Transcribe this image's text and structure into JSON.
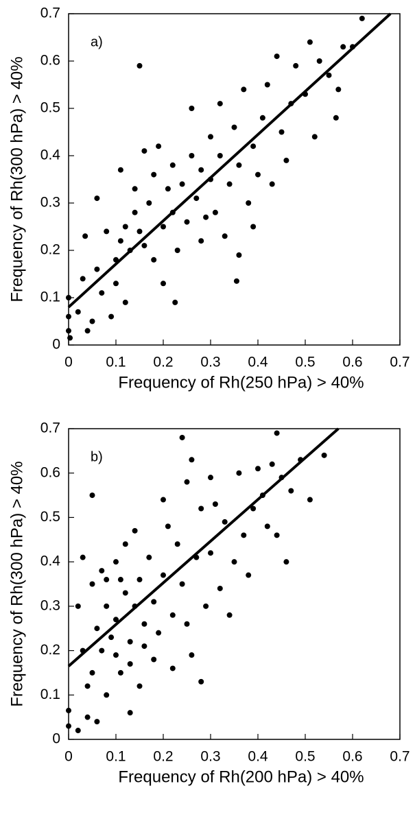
{
  "chart_data": [
    {
      "type": "scatter",
      "annotation": "a)",
      "x_label": "Frequency of Rh(250 hPa) > 40%",
      "y_label": "Frequency of Rh(300 hPa) > 40%",
      "color": "#000000",
      "xlim": [
        0,
        0.7
      ],
      "ylim": [
        0,
        0.7
      ],
      "xticks": [
        0,
        0.1,
        0.2,
        0.3,
        0.4,
        0.5,
        0.6,
        0.7
      ],
      "yticks": [
        0,
        0.1,
        0.2,
        0.3,
        0.4,
        0.5,
        0.6,
        0.7
      ],
      "x": [
        0,
        0,
        0,
        0.003,
        0.02,
        0.035,
        0.03,
        0.04,
        0.05,
        0.06,
        0.06,
        0.07,
        0.08,
        0.09,
        0.1,
        0.1,
        0.11,
        0.11,
        0.12,
        0.12,
        0.13,
        0.14,
        0.14,
        0.15,
        0.15,
        0.16,
        0.16,
        0.17,
        0.18,
        0.18,
        0.19,
        0.2,
        0.2,
        0.21,
        0.22,
        0.22,
        0.225,
        0.23,
        0.24,
        0.25,
        0.26,
        0.26,
        0.27,
        0.28,
        0.28,
        0.29,
        0.3,
        0.3,
        0.31,
        0.32,
        0.32,
        0.33,
        0.34,
        0.35,
        0.355,
        0.36,
        0.36,
        0.37,
        0.38,
        0.39,
        0.4,
        0.41,
        0.42,
        0.43,
        0.44,
        0.45,
        0.46,
        0.47,
        0.48,
        0.5,
        0.51,
        0.52,
        0.53,
        0.55,
        0.565,
        0.57,
        0.58,
        0.6,
        0.62,
        0.39
      ],
      "values": [
        0.1,
        0.06,
        0.03,
        0.015,
        0.07,
        0.23,
        0.14,
        0.03,
        0.05,
        0.31,
        0.16,
        0.11,
        0.24,
        0.06,
        0.18,
        0.13,
        0.22,
        0.37,
        0.25,
        0.09,
        0.2,
        0.28,
        0.33,
        0.59,
        0.24,
        0.41,
        0.21,
        0.3,
        0.36,
        0.18,
        0.42,
        0.25,
        0.13,
        0.33,
        0.28,
        0.38,
        0.09,
        0.2,
        0.34,
        0.26,
        0.5,
        0.4,
        0.31,
        0.22,
        0.37,
        0.27,
        0.44,
        0.35,
        0.28,
        0.51,
        0.4,
        0.23,
        0.34,
        0.46,
        0.135,
        0.38,
        0.19,
        0.54,
        0.3,
        0.42,
        0.36,
        0.48,
        0.55,
        0.34,
        0.61,
        0.45,
        0.39,
        0.51,
        0.59,
        0.53,
        0.64,
        0.44,
        0.6,
        0.57,
        0.48,
        0.54,
        0.63,
        0.63,
        0.69,
        0.25
      ],
      "fit_line": {
        "x": [
          0,
          0.68
        ],
        "values": [
          0.08,
          0.7
        ]
      }
    },
    {
      "type": "scatter",
      "annotation": "b)",
      "x_label": "Frequency of Rh(200 hPa) > 40%",
      "y_label": "Frequency of Rh(300 hPa) > 40%",
      "color": "#000000",
      "xlim": [
        0,
        0.7
      ],
      "ylim": [
        0,
        0.7
      ],
      "xticks": [
        0,
        0.1,
        0.2,
        0.3,
        0.4,
        0.5,
        0.6,
        0.7
      ],
      "yticks": [
        0,
        0.1,
        0.2,
        0.3,
        0.4,
        0.5,
        0.6,
        0.7
      ],
      "x": [
        0,
        0,
        0.02,
        0.04,
        0.05,
        0.02,
        0.03,
        0.03,
        0.04,
        0.05,
        0.05,
        0.06,
        0.06,
        0.07,
        0.07,
        0.08,
        0.08,
        0.09,
        0.1,
        0.1,
        0.1,
        0.11,
        0.12,
        0.12,
        0.13,
        0.13,
        0.14,
        0.14,
        0.15,
        0.15,
        0.16,
        0.17,
        0.18,
        0.18,
        0.19,
        0.2,
        0.2,
        0.21,
        0.22,
        0.22,
        0.23,
        0.24,
        0.24,
        0.25,
        0.25,
        0.26,
        0.26,
        0.27,
        0.28,
        0.28,
        0.29,
        0.3,
        0.3,
        0.31,
        0.32,
        0.33,
        0.34,
        0.35,
        0.36,
        0.37,
        0.38,
        0.39,
        0.4,
        0.41,
        0.42,
        0.43,
        0.44,
        0.44,
        0.45,
        0.46,
        0.47,
        0.49,
        0.51,
        0.54,
        0.11,
        0.16,
        0.08,
        0.13
      ],
      "values": [
        0.065,
        0.03,
        0.02,
        0.05,
        0.55,
        0.3,
        0.41,
        0.2,
        0.12,
        0.35,
        0.15,
        0.25,
        0.04,
        0.38,
        0.2,
        0.3,
        0.1,
        0.23,
        0.4,
        0.27,
        0.19,
        0.15,
        0.33,
        0.44,
        0.22,
        0.06,
        0.47,
        0.3,
        0.36,
        0.12,
        0.26,
        0.41,
        0.31,
        0.18,
        0.24,
        0.37,
        0.54,
        0.48,
        0.28,
        0.16,
        0.44,
        0.68,
        0.35,
        0.58,
        0.26,
        0.63,
        0.19,
        0.41,
        0.13,
        0.52,
        0.3,
        0.59,
        0.42,
        0.53,
        0.34,
        0.49,
        0.28,
        0.4,
        0.6,
        0.46,
        0.37,
        0.52,
        0.61,
        0.55,
        0.48,
        0.62,
        0.46,
        0.69,
        0.59,
        0.4,
        0.56,
        0.63,
        0.54,
        0.64,
        0.36,
        0.21,
        0.36,
        0.17
      ],
      "fit_line": {
        "x": [
          0,
          0.57
        ],
        "values": [
          0.165,
          0.7
        ]
      }
    }
  ]
}
